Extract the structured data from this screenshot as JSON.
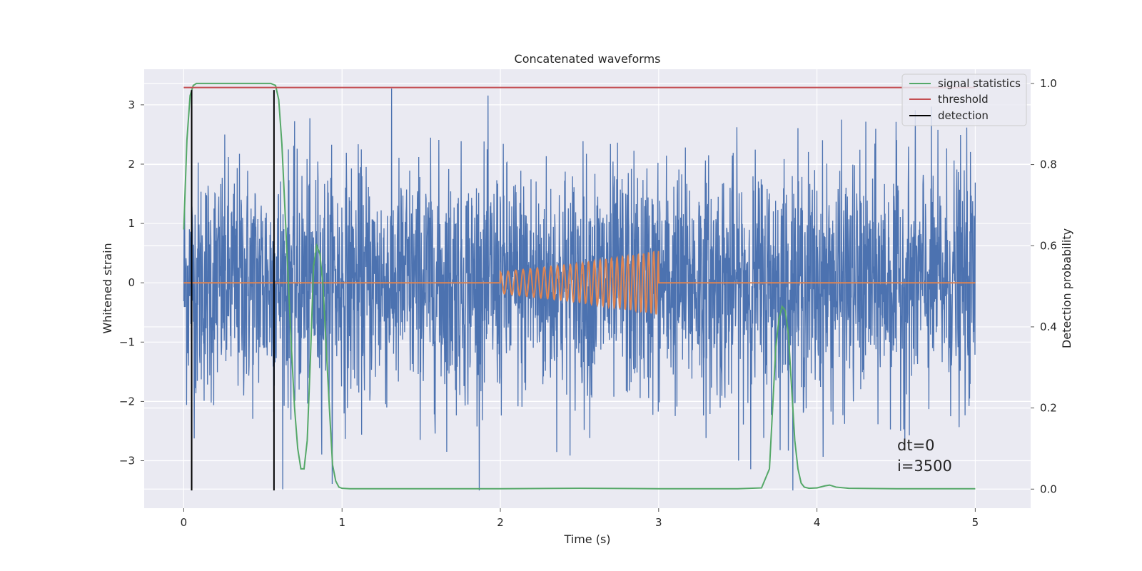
{
  "chart_data": {
    "type": "line",
    "title": "Concatenated waveforms",
    "xlabel": "Time (s)",
    "ylabel_left": "Whitened strain",
    "ylabel_right": "Detection probability",
    "xlim": [
      -0.25,
      5.35
    ],
    "ylim_left": [
      -3.8,
      3.6
    ],
    "ylim_right": [
      -0.047,
      1.035
    ],
    "xticks": [
      {
        "value": 0,
        "label": "0"
      },
      {
        "value": 1,
        "label": "1"
      },
      {
        "value": 2,
        "label": "2"
      },
      {
        "value": 3,
        "label": "3"
      },
      {
        "value": 4,
        "label": "4"
      },
      {
        "value": 5,
        "label": "5"
      }
    ],
    "yticks_left": [
      {
        "value": 3,
        "label": "3"
      },
      {
        "value": 2,
        "label": "2"
      },
      {
        "value": 1,
        "label": "1"
      },
      {
        "value": 0,
        "label": "0"
      },
      {
        "value": -1,
        "label": "−1"
      },
      {
        "value": -2,
        "label": "−2"
      },
      {
        "value": -3,
        "label": "−3"
      }
    ],
    "yticks_right": [
      {
        "value": 1.0,
        "label": "1.0"
      },
      {
        "value": 0.8,
        "label": "0.8"
      },
      {
        "value": 0.6,
        "label": "0.6"
      },
      {
        "value": 0.4,
        "label": "0.4"
      },
      {
        "value": 0.2,
        "label": "0.2"
      },
      {
        "value": 0.0,
        "label": "0.0"
      }
    ],
    "grid": true,
    "legend_position": "top-right",
    "colors": {
      "background": "#eaeaf2",
      "grid": "#ffffff",
      "noise": "#4c72b0",
      "injection": "#dd8452",
      "signal_statistics": "#55a868",
      "threshold": "#c44e52",
      "detection": "#000000"
    },
    "noise": {
      "axis": "left",
      "x_range": [
        0,
        5
      ],
      "envelope_typical": 1.0,
      "peak_min": -3.5,
      "peak_max": 3.3
    },
    "injection": {
      "axis": "left",
      "x": [
        0,
        2.0,
        2.1,
        2.2,
        2.3,
        2.4,
        2.5,
        2.6,
        2.7,
        2.8,
        2.9,
        3.0,
        3.0,
        5.0
      ],
      "amplitude": [
        0,
        0.18,
        0.21,
        0.24,
        0.27,
        0.3,
        0.33,
        0.37,
        0.41,
        0.45,
        0.49,
        0.54,
        0,
        0
      ]
    },
    "series": [
      {
        "name": "signal statistics",
        "axis": "right",
        "x": [
          0.0,
          0.02,
          0.04,
          0.06,
          0.08,
          0.1,
          0.2,
          0.3,
          0.4,
          0.5,
          0.55,
          0.58,
          0.6,
          0.62,
          0.65,
          0.68,
          0.7,
          0.72,
          0.74,
          0.76,
          0.78,
          0.8,
          0.82,
          0.84,
          0.86,
          0.88,
          0.9,
          0.92,
          0.94,
          0.96,
          0.98,
          1.0,
          1.05,
          1.5,
          2.0,
          2.5,
          3.0,
          3.5,
          3.65,
          3.7,
          3.72,
          3.74,
          3.76,
          3.78,
          3.8,
          3.82,
          3.84,
          3.86,
          3.88,
          3.9,
          3.92,
          3.95,
          4.0,
          4.05,
          4.08,
          4.12,
          4.2,
          4.5,
          5.0
        ],
        "y": [
          0.64,
          0.86,
          0.97,
          0.995,
          1.0,
          1.0,
          1.0,
          1.0,
          1.0,
          1.0,
          1.0,
          0.995,
          0.96,
          0.85,
          0.6,
          0.35,
          0.2,
          0.1,
          0.05,
          0.05,
          0.12,
          0.32,
          0.55,
          0.6,
          0.58,
          0.5,
          0.35,
          0.2,
          0.06,
          0.02,
          0.005,
          0.002,
          0.001,
          0.001,
          0.001,
          0.002,
          0.001,
          0.001,
          0.003,
          0.05,
          0.2,
          0.35,
          0.42,
          0.45,
          0.44,
          0.38,
          0.25,
          0.12,
          0.05,
          0.015,
          0.005,
          0.002,
          0.003,
          0.008,
          0.01,
          0.005,
          0.002,
          0.001,
          0.001
        ]
      },
      {
        "name": "threshold",
        "axis": "right",
        "x": [
          0,
          5
        ],
        "y": [
          0.99,
          0.99
        ]
      },
      {
        "name": "detection",
        "axis": "left",
        "x": [
          0.05,
          0.57
        ],
        "y_range": [
          -3.5,
          3.25
        ]
      }
    ],
    "annotations": [
      "dt=0",
      "i=3500"
    ]
  }
}
